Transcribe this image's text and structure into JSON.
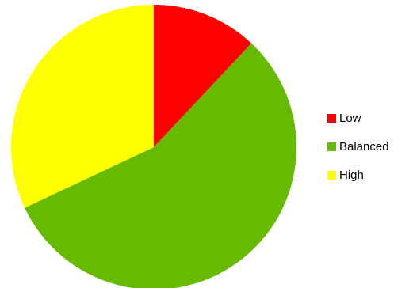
{
  "chart_data": {
    "type": "pie",
    "title": "",
    "categories": [
      "Low",
      "Balanced",
      "High"
    ],
    "values": [
      12,
      56,
      32
    ],
    "colors": [
      "#ff0000",
      "#66bb00",
      "#ffff00"
    ],
    "start_angle_deg": 0,
    "direction": "clockwise",
    "legend": {
      "placement": "right",
      "entries": [
        "Low",
        "Balanced",
        "High"
      ]
    }
  }
}
